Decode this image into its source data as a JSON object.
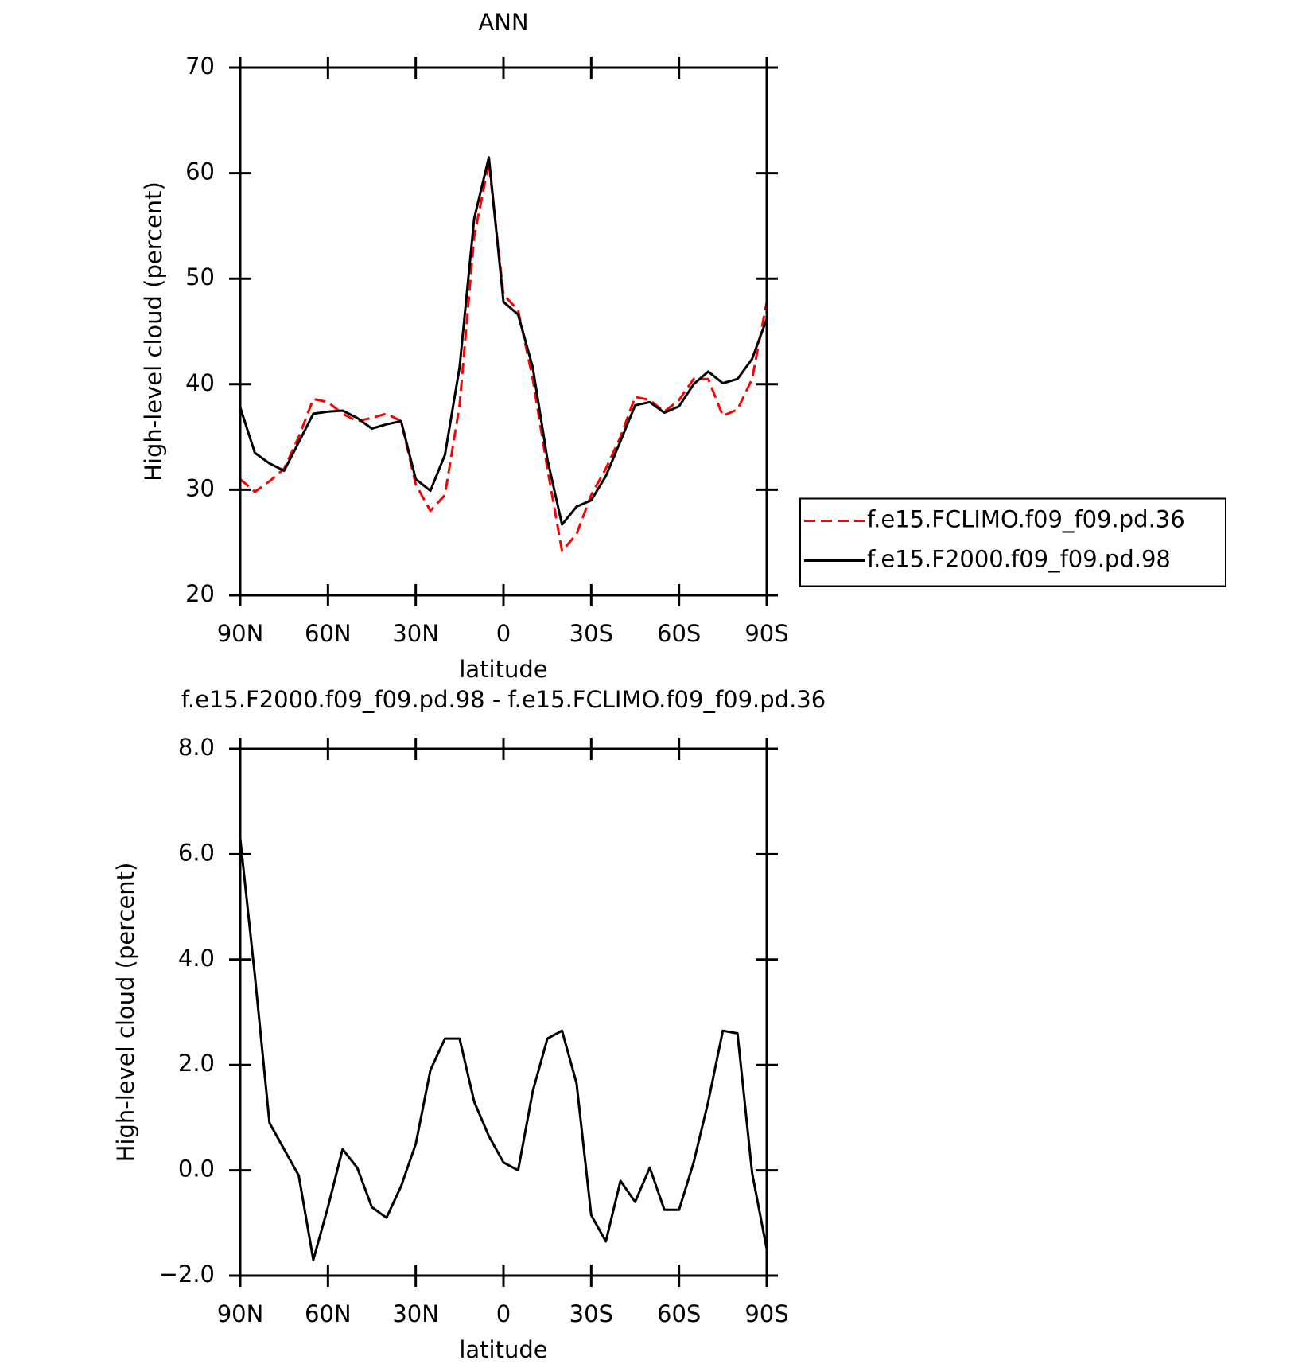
{
  "chart_data": [
    {
      "type": "line",
      "title": "ANN",
      "xlabel": "latitude",
      "ylabel": "High-level cloud (percent)",
      "x": [
        90,
        85,
        80,
        75,
        70,
        65,
        60,
        55,
        50,
        45,
        40,
        35,
        30,
        25,
        20,
        15,
        10,
        5,
        0,
        -5,
        -10,
        -15,
        -20,
        -25,
        -30,
        -35,
        -40,
        -45,
        -50,
        -55,
        -60,
        -65,
        -70,
        -75,
        -80,
        -85,
        -90
      ],
      "series": [
        {
          "name": "f.e15.FCLIMO.f09_f09.pd.36",
          "color": "#ff0000",
          "style": "dashed",
          "values": [
            31,
            29.8,
            30.8,
            32,
            35,
            38.6,
            38.3,
            37.2,
            36.5,
            36.8,
            37.2,
            36.5,
            30.5,
            28,
            29.5,
            38,
            54,
            61,
            48.5,
            47,
            40.5,
            32,
            24.2,
            25.8,
            29.5,
            32,
            35,
            38.8,
            38.5,
            37.4,
            38.5,
            40.5,
            40.5,
            37,
            37.6,
            40.5,
            47.8
          ]
        },
        {
          "name": "f.e15.F2000.f09_f09.pd.98",
          "color": "#000000",
          "style": "solid",
          "values": [
            37.8,
            33.5,
            32.5,
            31.8,
            34.5,
            37.2,
            37.4,
            37.5,
            36.8,
            35.8,
            36.2,
            36.5,
            31,
            29.9,
            33.3,
            41.6,
            55.7,
            61.5,
            47.8,
            46.6,
            41.6,
            32.9,
            26.7,
            28.4,
            29,
            31.3,
            34.6,
            38,
            38.3,
            37.3,
            37.9,
            40,
            41.2,
            40.1,
            40.5,
            42.4,
            46.2
          ]
        }
      ],
      "xlim": [
        90,
        -90
      ],
      "xticks": [
        {
          "value": 90,
          "label": "90N"
        },
        {
          "value": 60,
          "label": "60N"
        },
        {
          "value": 30,
          "label": "30N"
        },
        0,
        {
          "value": -30,
          "label": "30S"
        },
        {
          "value": -60,
          "label": "60S"
        },
        {
          "value": -90,
          "label": "90S"
        }
      ],
      "ylim": [
        20,
        70
      ],
      "yticks": [
        20,
        30,
        40,
        50,
        60,
        70
      ],
      "legend": "right"
    },
    {
      "type": "line",
      "title": "f.e15.F2000.f09_f09.pd.98 - f.e15.FCLIMO.f09_f09.pd.36",
      "xlabel": "latitude",
      "ylabel": "High-level cloud (percent)",
      "x": [
        90,
        85,
        80,
        75,
        70,
        65,
        60,
        55,
        50,
        45,
        40,
        35,
        30,
        25,
        20,
        15,
        10,
        5,
        0,
        -5,
        -10,
        -15,
        -20,
        -25,
        -30,
        -35,
        -40,
        -45,
        -50,
        -55,
        -60,
        -65,
        -70,
        -75,
        -80,
        -85,
        -90
      ],
      "series": [
        {
          "color": "#000000",
          "style": "solid",
          "values": [
            6.3,
            3.7,
            0.9,
            0.4,
            -0.1,
            -1.7,
            -0.7,
            0.4,
            0.05,
            -0.7,
            -0.9,
            -0.3,
            0.5,
            1.9,
            2.5,
            2.5,
            1.3,
            0.65,
            0.15,
            0,
            1.5,
            2.5,
            2.65,
            1.65,
            -0.85,
            -1.35,
            -0.2,
            -0.6,
            0.05,
            -0.75,
            -0.75,
            0.15,
            1.3,
            2.65,
            2.6,
            -0.05,
            -1.5
          ]
        }
      ],
      "xlim": [
        90,
        -90
      ],
      "xticks": [
        {
          "value": 90,
          "label": "90N"
        },
        {
          "value": 60,
          "label": "60N"
        },
        {
          "value": 30,
          "label": "30N"
        },
        0,
        {
          "value": -30,
          "label": "30S"
        },
        {
          "value": -60,
          "label": "60S"
        },
        {
          "value": -90,
          "label": "90S"
        }
      ],
      "ylim": [
        -2,
        8
      ],
      "yticks": [
        {
          "value": -2,
          "label": "−2.0"
        },
        {
          "value": 0,
          "label": "0.0"
        },
        {
          "value": 2,
          "label": "2.0"
        },
        {
          "value": 4,
          "label": "4.0"
        },
        {
          "value": 6,
          "label": "6.0"
        },
        {
          "value": 8,
          "label": "8.0"
        }
      ]
    }
  ]
}
